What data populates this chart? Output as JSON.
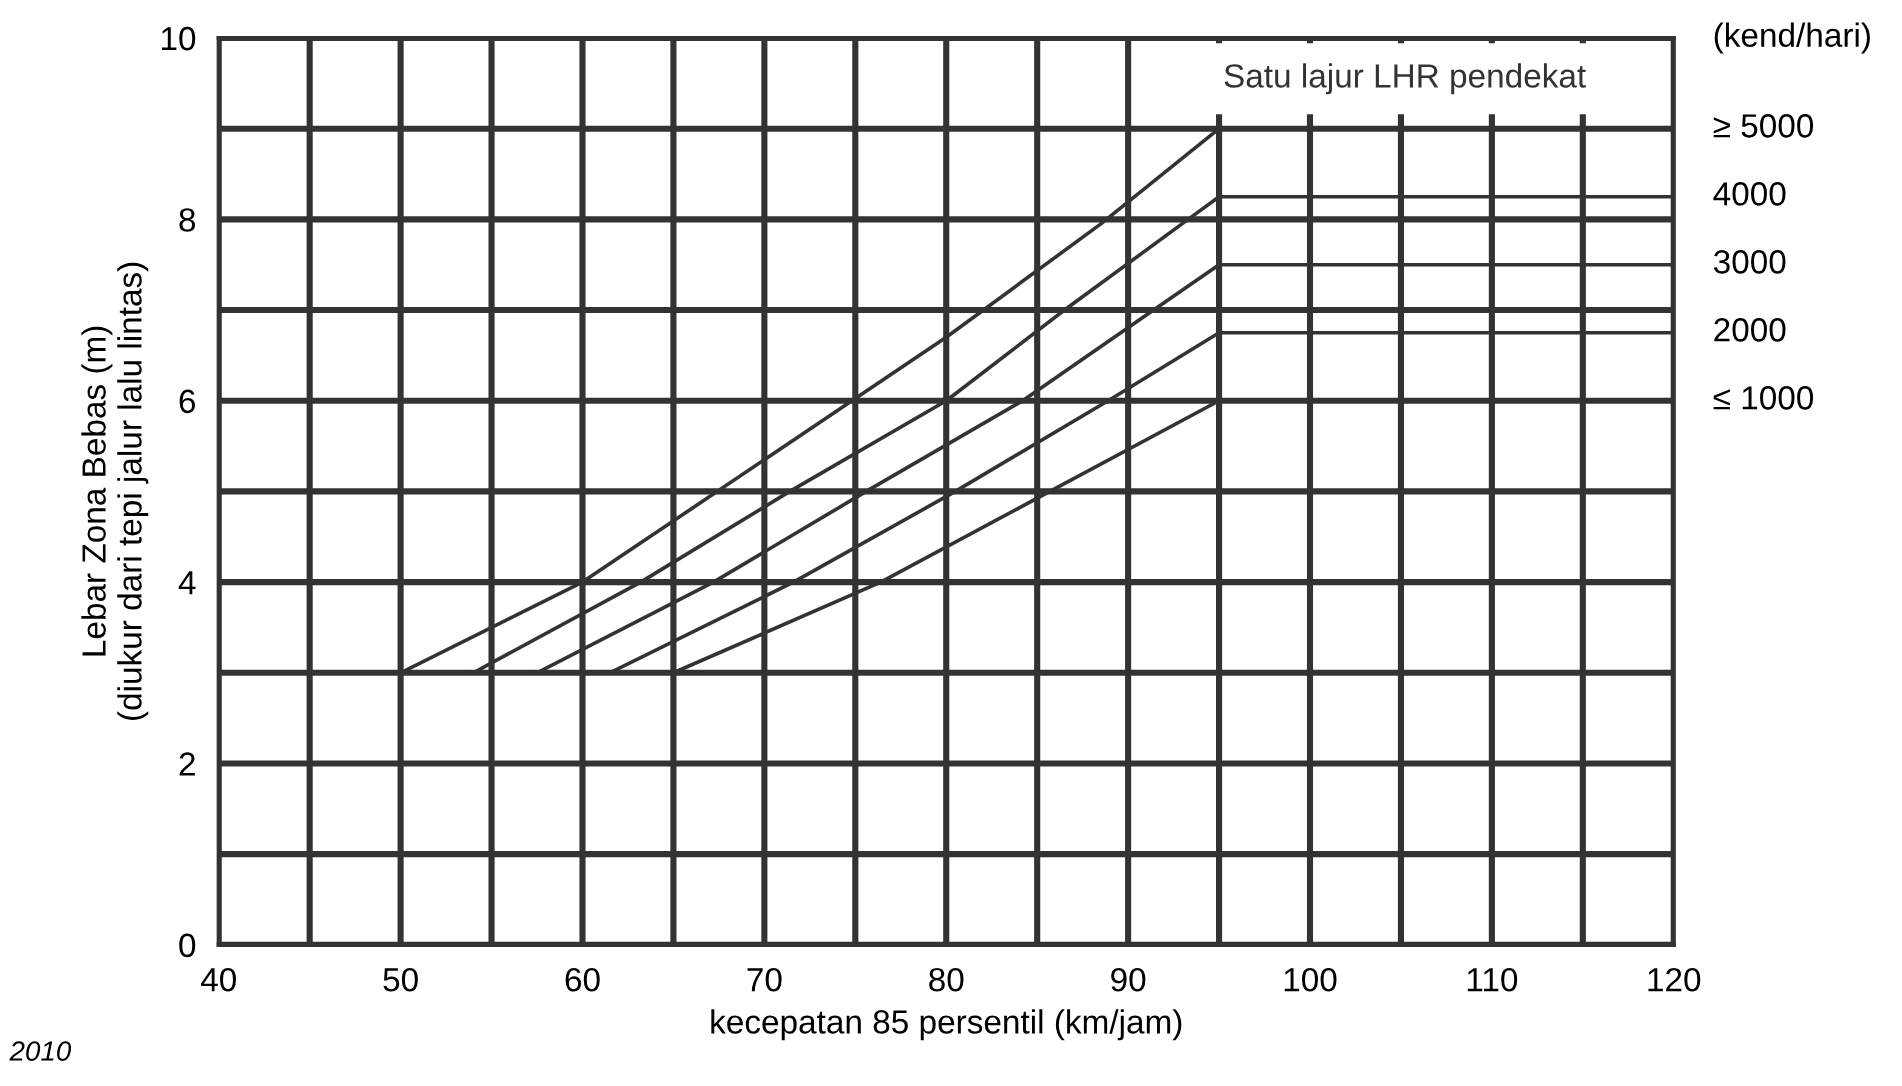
{
  "chart_data": {
    "type": "line",
    "xlabel": "kecepatan 85 persentil (km/jam)",
    "ylabel": "Lebar Zona Bebas (m)\n(diukur dari tepi jalur lalu lintas)",
    "legend_title": "(kend/hari)",
    "annotations": [
      "Satu lajur LHR pendekat",
      "2010"
    ],
    "series": [
      {
        "name": "≥ 5000",
        "color": "#333333",
        "x": [
          50,
          60,
          70,
          80,
          88.5,
          95,
          120
        ],
        "values": [
          3,
          4,
          5.35,
          6.7,
          7.95,
          9,
          9
        ]
      },
      {
        "name": "4000",
        "color": "#333333",
        "x": [
          54,
          63.2,
          71.4,
          80,
          86.5,
          93.3,
          95,
          120
        ],
        "values": [
          3,
          4,
          5,
          6,
          7,
          8,
          8.25,
          8.25
        ]
      },
      {
        "name": "3000",
        "color": "#333333",
        "x": [
          57.5,
          67.2,
          75.6,
          84.2,
          91.4,
          95,
          120
        ],
        "values": [
          3,
          4,
          5,
          6,
          7,
          7.5,
          7.5
        ]
      },
      {
        "name": "2000",
        "color": "#333333",
        "x": [
          61.5,
          71.6,
          80.5,
          88.9,
          95,
          120
        ],
        "values": [
          3,
          4,
          5,
          6,
          6.75,
          6.75
        ]
      },
      {
        "name": "≤ 1000",
        "color": "#333333",
        "x": [
          65,
          76.4,
          85.7,
          95,
          120
        ],
        "values": [
          3,
          4,
          5,
          6,
          6
        ]
      }
    ],
    "xlim": [
      40,
      120
    ],
    "ylim": [
      0,
      10
    ],
    "xticks": [
      40,
      {
        "value": 45,
        "label": null
      },
      50,
      {
        "value": 55,
        "label": null
      },
      60,
      {
        "value": 65,
        "label": null
      },
      70,
      {
        "value": 75,
        "label": null
      },
      80,
      {
        "value": 85,
        "label": null
      },
      90,
      {
        "value": 95,
        "label": null
      },
      100,
      {
        "value": 105,
        "label": null
      },
      110,
      {
        "value": 115,
        "label": null
      },
      120
    ],
    "yticks": [
      0,
      {
        "value": 1,
        "label": null
      },
      2,
      {
        "value": 3,
        "label": null
      },
      4,
      {
        "value": 5,
        "label": null
      },
      6,
      {
        "value": 7,
        "label": null
      },
      8,
      {
        "value": 9,
        "label": null
      },
      10
    ],
    "grid": true,
    "legend": false,
    "marker": "none",
    "line_style": "solid"
  }
}
